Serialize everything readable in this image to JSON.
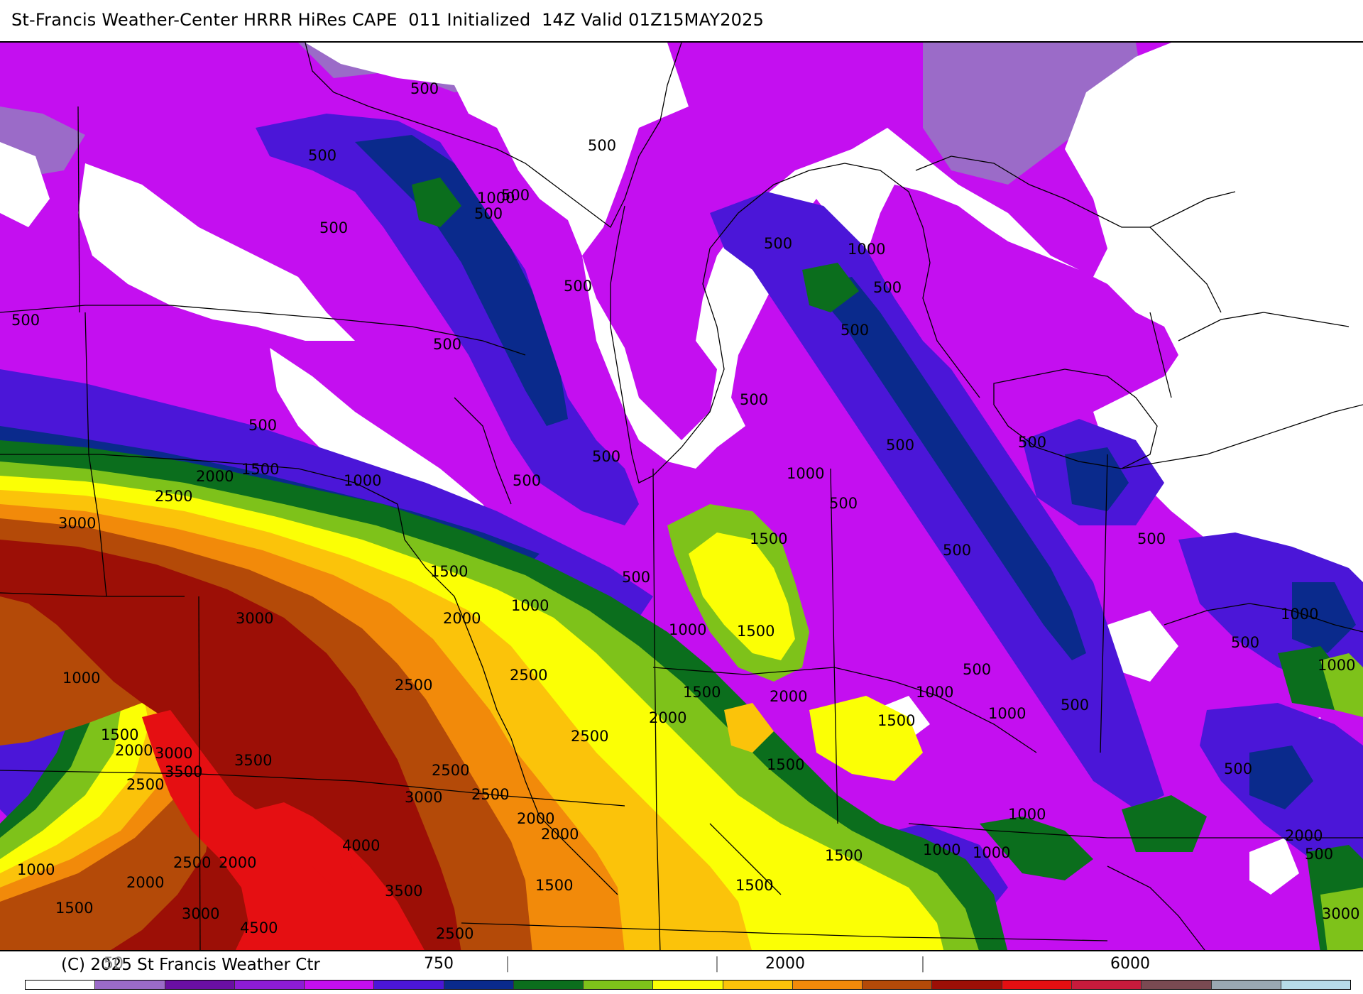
{
  "title": "St-Francis Weather-Center HRRR HiRes CAPE  011 Initialized  14Z Valid 01Z15MAY2025",
  "copyright": "(C) 2025 St Francis Weather Ctr",
  "colorbar": {
    "colors": [
      "#ffffff",
      "#9b6bc8",
      "#6a0fa3",
      "#8d1cd6",
      "#c40ff0",
      "#4b16d8",
      "#0a2a8c",
      "#0b6e1d",
      "#7ec21a",
      "#fbff05",
      "#fbc30a",
      "#f28a0a",
      "#b44a08",
      "#9c0f06",
      "#e50f12",
      "#c61b3c",
      "#7a4a52",
      "#9aa8b2",
      "#b6dce8"
    ],
    "tick_labels": [
      {
        "text": "50",
        "faint": true
      },
      {
        "text": "|",
        "faint": true
      },
      {
        "text": "750",
        "faint": false
      },
      {
        "text": "|",
        "faint": true
      },
      {
        "text": "|",
        "faint": true
      },
      {
        "text": "2000",
        "faint": false
      },
      {
        "text": "|",
        "faint": true
      },
      {
        "text": "6000",
        "faint": false
      }
    ]
  },
  "contour_labels": [
    "500",
    "500",
    "500",
    "500",
    "500",
    "500",
    "500",
    "500",
    "500",
    "500",
    "500",
    "500",
    "500",
    "500",
    "500",
    "500",
    "500",
    "500",
    "500",
    "500",
    "500",
    "500",
    "500",
    "500",
    "500",
    "500",
    "500",
    "1000",
    "1000",
    "1000",
    "1000",
    "1000",
    "1000",
    "1000",
    "1000",
    "1000",
    "1000",
    "1000",
    "1000",
    "1000",
    "1000",
    "1000",
    "1500",
    "1500",
    "1500",
    "1500",
    "1500",
    "1500",
    "1500",
    "1500",
    "1500",
    "1500",
    "1500",
    "1500",
    "2000",
    "2000",
    "2000",
    "2000",
    "2000",
    "2000",
    "2000",
    "2000",
    "2000",
    "2000",
    "2500",
    "2500",
    "2500",
    "2500",
    "2500",
    "2500",
    "2500",
    "2500",
    "2500",
    "3000",
    "3000",
    "3000",
    "3000",
    "3000",
    "3000",
    "3500",
    "3500",
    "3500",
    "4000",
    "4500"
  ]
}
